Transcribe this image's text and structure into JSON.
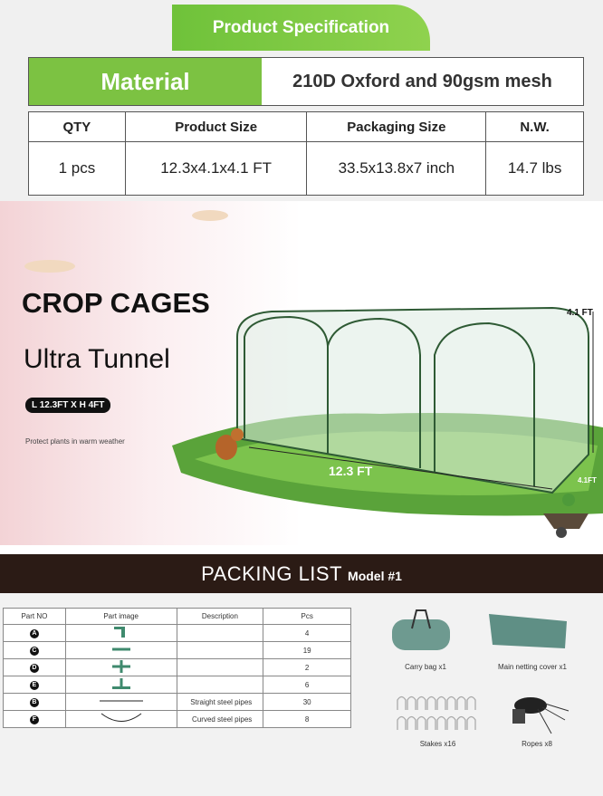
{
  "spec": {
    "title": "Product Specification",
    "material_label": "Material",
    "material_value": "210D Oxford and 90gsm mesh",
    "headers": [
      "QTY",
      "Product Size",
      "Packaging Size",
      "N.W."
    ],
    "values": [
      "1 pcs",
      "12.3x4.1x4.1 FT",
      "33.5x13.8x7 inch",
      "14.7 lbs"
    ]
  },
  "hero": {
    "title": "CROP CAGES",
    "subtitle": "Ultra Tunnel",
    "dims_badge": "L 12.3FT X H 4FT",
    "tagline": "Protect plants in warm weather",
    "height_label": "4.1 FT",
    "length_label": "12.3 FT",
    "width_label": "4.1FT"
  },
  "packing": {
    "title": "PACKING LIST",
    "model": "Model #1",
    "headers": [
      "Part NO",
      "Part image",
      "Description",
      "Pcs"
    ],
    "rows": [
      {
        "part": "A",
        "desc": "",
        "pcs": "4"
      },
      {
        "part": "C",
        "desc": "",
        "pcs": "19"
      },
      {
        "part": "D",
        "desc": "",
        "pcs": "2"
      },
      {
        "part": "E",
        "desc": "",
        "pcs": "6"
      },
      {
        "part": "B",
        "desc": "Straight steel pipes",
        "pcs": "30"
      },
      {
        "part": "F",
        "desc": "Curved steel pipes",
        "pcs": "8"
      }
    ],
    "items": [
      "Carry bag x1",
      "Main netting cover x1",
      "Stakes x16",
      "Ropes x8"
    ]
  },
  "colors": {
    "accent_green": "#7cc242",
    "band": "#2b1b15",
    "part_green": "#3f8a6e"
  }
}
